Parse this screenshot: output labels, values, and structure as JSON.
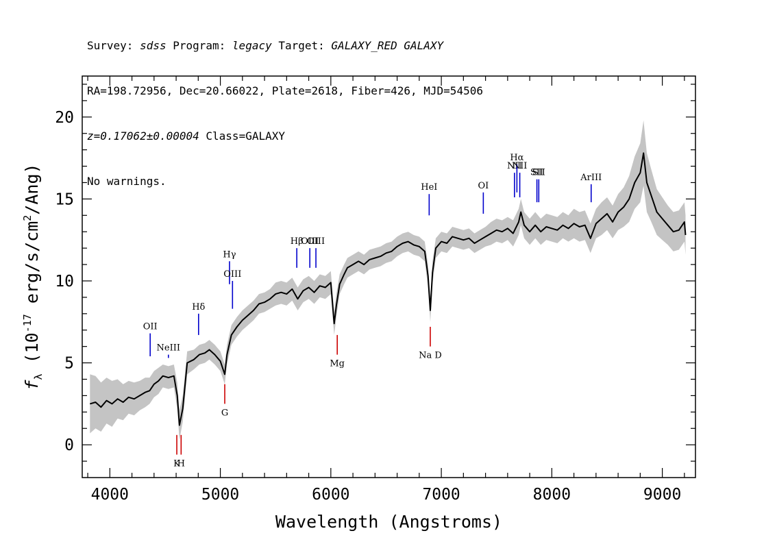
{
  "header": {
    "survey_label": "Survey: ",
    "survey": "sdss",
    "program_label": " Program: ",
    "program": "legacy",
    "target_label": " Target: ",
    "target": "GALAXY_RED GALAXY",
    "line2": "RA=198.72956, Dec=20.66022, Plate=2618, Fiber=426, MJD=54506",
    "redshift": "z=0.17062±0.00004",
    "class_text": " Class=GALAXY",
    "warnings": "No warnings."
  },
  "chart_data": {
    "type": "line",
    "title": "",
    "xlabel": "Wavelength (Angstroms)",
    "ylabel_parts": {
      "flux_symbol": "f",
      "flux_sub": "λ",
      "text": " (10",
      "exp": "-17",
      "units": " erg/s/cm",
      "sq": "2",
      "end": "/Ang)"
    },
    "xlim": [
      3750,
      9300
    ],
    "ylim": [
      -2.0,
      22.5
    ],
    "x_ticks": [
      4000,
      5000,
      6000,
      7000,
      8000,
      9000
    ],
    "y_ticks": [
      0,
      5,
      10,
      15,
      20
    ],
    "colors": {
      "spectrum": "#000000",
      "error_band": "#c4c4c4",
      "emission": "#0000cc",
      "absorption": "#cc0000",
      "axes": "#000000"
    },
    "spectrum": {
      "x": [
        3820,
        3870,
        3920,
        3970,
        4020,
        4070,
        4120,
        4170,
        4220,
        4270,
        4320,
        4360,
        4400,
        4440,
        4480,
        4530,
        4580,
        4610,
        4630,
        4660,
        4700,
        4760,
        4810,
        4860,
        4900,
        4950,
        5000,
        5040,
        5060,
        5100,
        5150,
        5200,
        5250,
        5300,
        5350,
        5400,
        5450,
        5500,
        5550,
        5600,
        5650,
        5700,
        5750,
        5800,
        5850,
        5900,
        5950,
        6000,
        6030,
        6050,
        6080,
        6120,
        6150,
        6200,
        6250,
        6300,
        6350,
        6400,
        6450,
        6500,
        6550,
        6600,
        6650,
        6700,
        6750,
        6800,
        6850,
        6880,
        6900,
        6920,
        6950,
        7000,
        7050,
        7100,
        7150,
        7200,
        7250,
        7300,
        7350,
        7400,
        7450,
        7500,
        7550,
        7600,
        7650,
        7700,
        7720,
        7750,
        7800,
        7850,
        7900,
        7950,
        8000,
        8050,
        8100,
        8150,
        8200,
        8250,
        8300,
        8350,
        8400,
        8450,
        8500,
        8550,
        8600,
        8650,
        8700,
        8750,
        8800,
        8830,
        8860,
        8900,
        8950,
        9000,
        9050,
        9100,
        9150,
        9200,
        9210
      ],
      "y": [
        2.5,
        2.6,
        2.3,
        2.7,
        2.5,
        2.8,
        2.6,
        2.9,
        2.8,
        3.0,
        3.2,
        3.3,
        3.7,
        3.9,
        4.2,
        4.1,
        4.2,
        3.0,
        1.2,
        2.2,
        5.0,
        5.2,
        5.5,
        5.6,
        5.8,
        5.5,
        5.1,
        4.3,
        5.5,
        6.7,
        7.2,
        7.6,
        7.9,
        8.2,
        8.6,
        8.7,
        8.9,
        9.2,
        9.3,
        9.2,
        9.5,
        8.9,
        9.4,
        9.6,
        9.3,
        9.7,
        9.6,
        9.9,
        7.4,
        8.5,
        9.8,
        10.4,
        10.8,
        11.0,
        11.2,
        11.0,
        11.3,
        11.4,
        11.5,
        11.7,
        11.8,
        12.1,
        12.3,
        12.4,
        12.2,
        12.1,
        11.8,
        10.3,
        8.2,
        10.5,
        12.0,
        12.4,
        12.3,
        12.7,
        12.6,
        12.5,
        12.6,
        12.3,
        12.5,
        12.7,
        12.9,
        13.1,
        13.0,
        13.2,
        12.9,
        13.6,
        14.2,
        13.4,
        13.0,
        13.4,
        13.0,
        13.3,
        13.2,
        13.1,
        13.4,
        13.2,
        13.5,
        13.3,
        13.4,
        12.6,
        13.5,
        13.8,
        14.1,
        13.6,
        14.2,
        14.5,
        15.0,
        16.0,
        16.6,
        17.8,
        16.0,
        15.2,
        14.2,
        13.8,
        13.4,
        13.0,
        13.1,
        13.6,
        12.8
      ],
      "err": [
        1.8,
        1.6,
        1.5,
        1.4,
        1.4,
        1.2,
        1.1,
        1.0,
        1.0,
        0.9,
        0.9,
        0.8,
        0.8,
        0.8,
        0.7,
        0.7,
        0.7,
        0.8,
        0.9,
        0.8,
        0.7,
        0.6,
        0.6,
        0.6,
        0.6,
        0.6,
        0.6,
        0.6,
        0.6,
        0.6,
        0.6,
        0.6,
        0.6,
        0.6,
        0.6,
        0.6,
        0.6,
        0.7,
        0.7,
        0.7,
        0.7,
        0.7,
        0.7,
        0.7,
        0.7,
        0.7,
        0.7,
        0.7,
        0.7,
        0.7,
        0.6,
        0.6,
        0.6,
        0.6,
        0.6,
        0.6,
        0.6,
        0.6,
        0.6,
        0.6,
        0.6,
        0.6,
        0.6,
        0.6,
        0.6,
        0.6,
        0.6,
        0.7,
        0.7,
        0.7,
        0.6,
        0.6,
        0.6,
        0.6,
        0.6,
        0.6,
        0.6,
        0.6,
        0.6,
        0.6,
        0.7,
        0.7,
        0.7,
        0.7,
        0.8,
        0.8,
        0.8,
        0.8,
        0.8,
        0.8,
        0.8,
        0.8,
        0.8,
        0.8,
        0.8,
        0.8,
        0.9,
        0.9,
        0.9,
        0.9,
        0.9,
        1.0,
        1.0,
        1.0,
        1.1,
        1.2,
        1.4,
        1.6,
        1.8,
        2.0,
        1.8,
        1.6,
        1.4,
        1.3,
        1.2,
        1.2,
        1.2,
        1.2,
        1.2
      ]
    },
    "emission_lines": [
      {
        "label": "OII",
        "x": 4365,
        "y0": 5.4,
        "y1": 6.8
      },
      {
        "label": "NeIII",
        "x": 4530,
        "y0": 5.3,
        "y1": 5.5
      },
      {
        "label": "Hδ",
        "x": 4803,
        "y0": 6.7,
        "y1": 8.0
      },
      {
        "label": "Hγ",
        "x": 5083,
        "y0": 9.8,
        "y1": 11.2
      },
      {
        "label": "OIII",
        "x": 5110,
        "y0": 8.3,
        "y1": 10.0
      },
      {
        "label": "Hβ",
        "x": 5692,
        "y0": 10.8,
        "y1": 12.0
      },
      {
        "label": "OIII",
        "x": 5810,
        "y0": 10.8,
        "y1": 12.0
      },
      {
        "label": "OIII",
        "x": 5865,
        "y0": 10.8,
        "y1": 12.0
      },
      {
        "label": "HeI",
        "x": 6890,
        "y0": 14.0,
        "y1": 15.3
      },
      {
        "label": "OI",
        "x": 7380,
        "y0": 14.1,
        "y1": 15.4
      },
      {
        "label": "NII",
        "x": 7662,
        "y0": 15.1,
        "y1": 16.6
      },
      {
        "label": "Hα",
        "x": 7684,
        "y0": 15.4,
        "y1": 17.1
      },
      {
        "label": "NII",
        "x": 7710,
        "y0": 15.1,
        "y1": 16.6
      },
      {
        "label": "SII",
        "x": 7865,
        "y0": 14.8,
        "y1": 16.2
      },
      {
        "label": "SII",
        "x": 7882,
        "y0": 14.8,
        "y1": 16.2
      },
      {
        "label": "ArIII",
        "x": 8356,
        "y0": 14.8,
        "y1": 15.9
      }
    ],
    "absorption_lines": [
      {
        "label": "K",
        "x": 4606,
        "y0": -0.6,
        "y1": 0.6
      },
      {
        "label": "H",
        "x": 4645,
        "y0": -0.6,
        "y1": 0.6
      },
      {
        "label": "G",
        "x": 5040,
        "y0": 2.5,
        "y1": 3.7
      },
      {
        "label": "Mg",
        "x": 6058,
        "y0": 5.5,
        "y1": 6.7
      },
      {
        "label": "Na D",
        "x": 6900,
        "y0": 6.0,
        "y1": 7.2
      }
    ]
  }
}
